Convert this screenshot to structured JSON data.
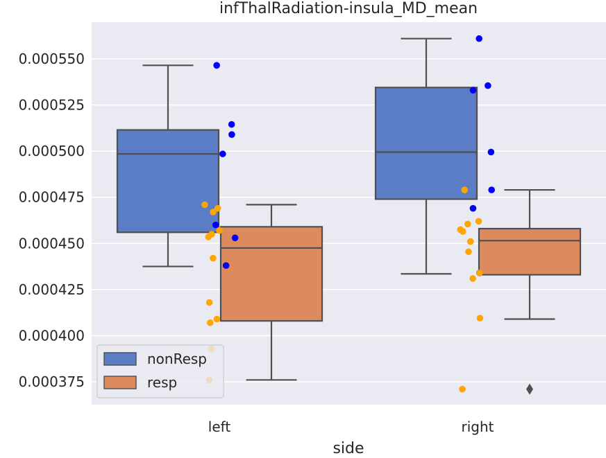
{
  "chart_data": {
    "type": "box",
    "title": "infThalRadiation-insula_MD_mean",
    "xlabel": "side",
    "ylabel": "",
    "categories": [
      "left",
      "right"
    ],
    "ylim": [
      0.00036,
      0.00057
    ],
    "yticks": [
      0.000375,
      0.0004,
      0.000425,
      0.00045,
      0.000475,
      0.0005,
      0.000525,
      0.00055
    ],
    "ytick_labels": [
      "0.000375",
      "0.000400",
      "0.000425",
      "0.000450",
      "0.000475",
      "0.000500",
      "0.000525",
      "0.000550"
    ],
    "grid": true,
    "legend_position": "lower-left",
    "series": [
      {
        "name": "nonResp",
        "box_color": "#5a7dc5",
        "point_color": "#0000ff",
        "boxes": [
          {
            "category": "left",
            "whisker_low": 0.0004375,
            "q1": 0.000456,
            "median": 0.0004985,
            "q3": 0.0005115,
            "whisker_high": 0.0005465
          },
          {
            "category": "right",
            "whisker_low": 0.0004335,
            "q1": 0.000474,
            "median": 0.0004995,
            "q3": 0.0005345,
            "whisker_high": 0.000561
          }
        ],
        "points": [
          {
            "category": "left",
            "values": [
              0.0005465,
              0.0005145,
              0.000509,
              0.0004985,
              0.00046,
              0.000453,
              0.000438
            ]
          },
          {
            "category": "right",
            "values": [
              0.000561,
              0.0005355,
              0.000533,
              0.0004995,
              0.000479,
              0.000469,
              0.000434
            ]
          }
        ]
      },
      {
        "name": "resp",
        "box_color": "#dd8a5e",
        "point_color": "#ffa500",
        "boxes": [
          {
            "category": "left",
            "whisker_low": 0.000376,
            "q1": 0.000408,
            "median": 0.0004475,
            "q3": 0.000459,
            "whisker_high": 0.000471
          },
          {
            "category": "right",
            "whisker_low": 0.000409,
            "q1": 0.000433,
            "median": 0.0004515,
            "q3": 0.000458,
            "whisker_high": 0.000479
          }
        ],
        "points": [
          {
            "category": "left",
            "values": [
              0.000471,
              0.000469,
              0.000467,
              0.000457,
              0.000455,
              0.0004535,
              0.000442,
              0.000418,
              0.000409,
              0.000407,
              0.000393,
              0.000376
            ]
          },
          {
            "category": "right",
            "values": [
              0.000479,
              0.000462,
              0.0004605,
              0.0004575,
              0.0004565,
              0.000451,
              0.000451,
              0.0004455,
              0.000434,
              0.000431,
              0.0004095,
              0.000371
            ]
          }
        ],
        "outliers": [
          {
            "category": "right",
            "values": [
              0.000371
            ]
          }
        ]
      }
    ]
  }
}
